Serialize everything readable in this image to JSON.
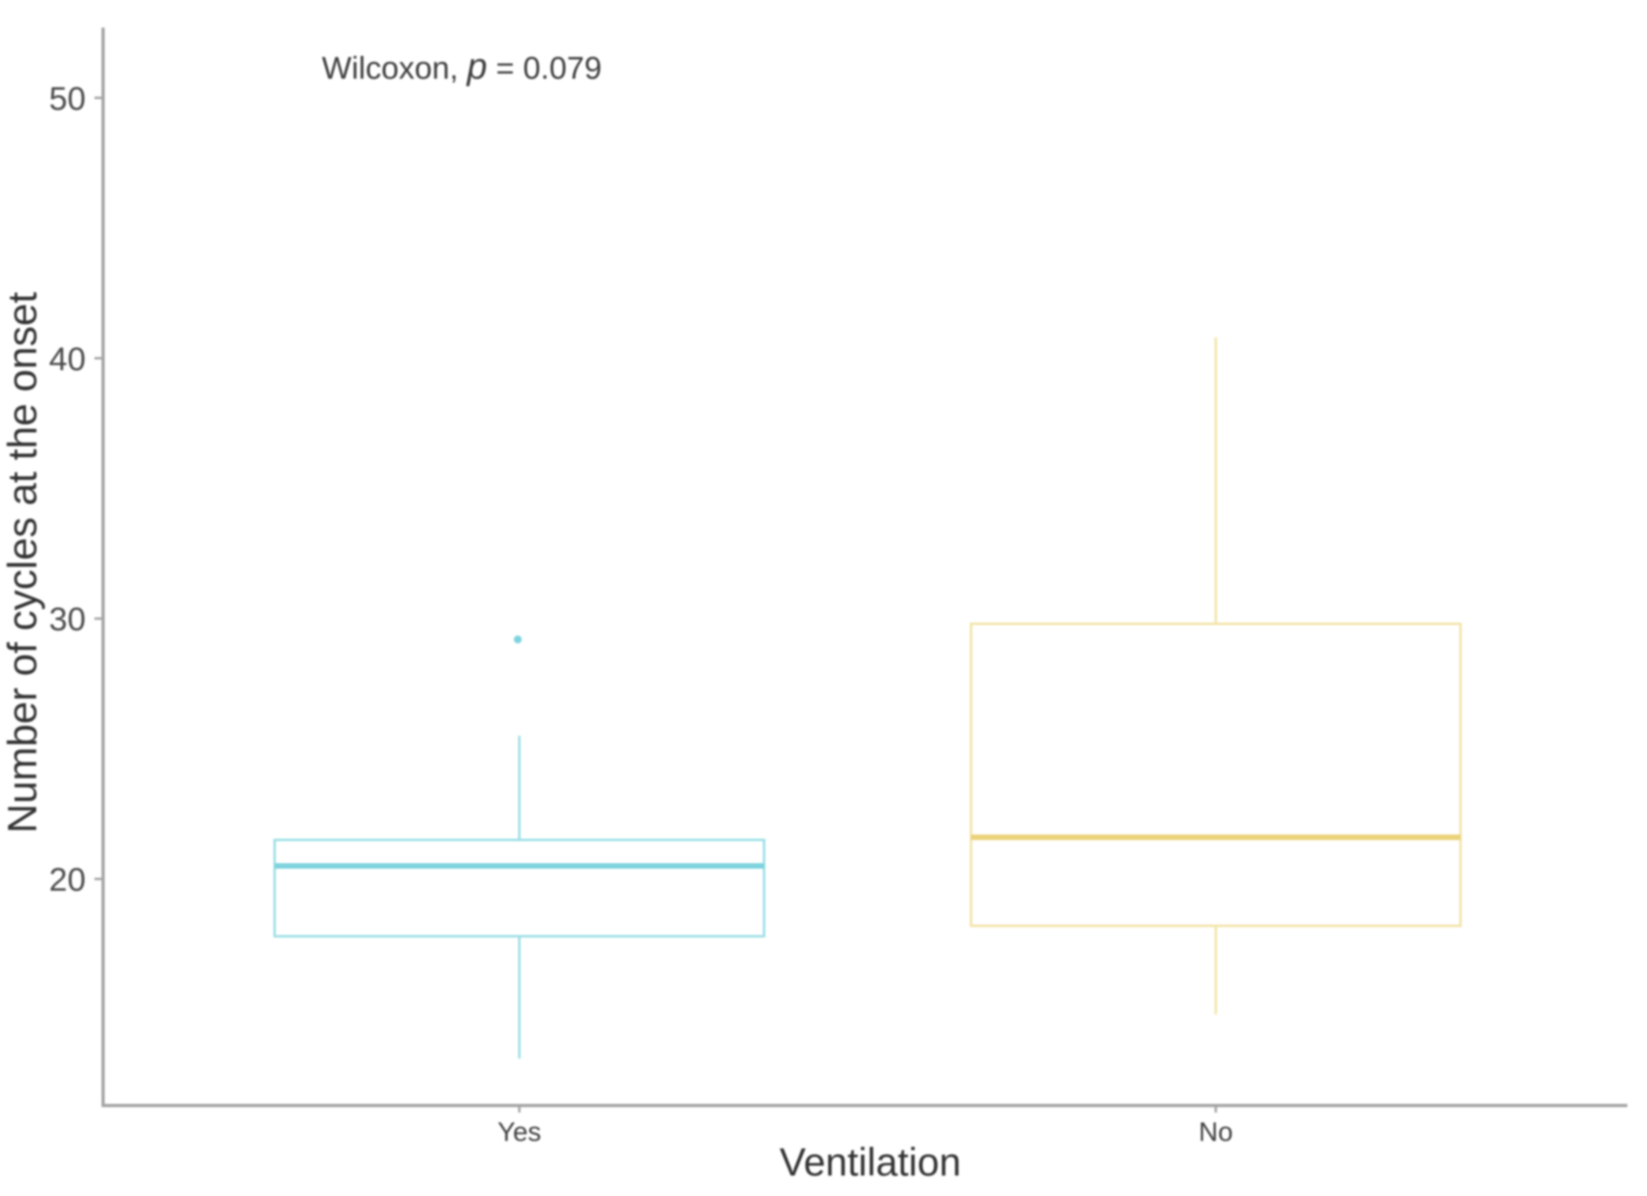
{
  "chart_data": {
    "type": "boxplot",
    "title": "",
    "annotation": {
      "full": "Wilcoxon, p = 0.079",
      "prefix": "Wilcoxon, ",
      "p_symbol": "p",
      "suffix": " = 0.079"
    },
    "xlabel": "Ventilation",
    "ylabel": "Number of cycles at the onset",
    "categories": [
      "Yes",
      "No"
    ],
    "yticks": [
      20,
      30,
      40,
      50
    ],
    "ylim": [
      11.3,
      52.7
    ],
    "grid": false,
    "legend": "none",
    "background": "#ffffff",
    "series": [
      {
        "name": "Yes",
        "box_color": "#9ADEE6",
        "median_color": "#7DD3DD",
        "whisker_min": 13.1,
        "q1": 17.8,
        "median": 20.5,
        "q3": 21.5,
        "whisker_max": 25.5,
        "outliers": [
          29.2
        ]
      },
      {
        "name": "No",
        "box_color": "#F3E3A6",
        "median_color": "#EBD178",
        "whisker_min": 14.8,
        "q1": 18.2,
        "median": 21.6,
        "q3": 29.8,
        "whisker_max": 40.8,
        "outliers": []
      }
    ],
    "colors": {
      "axis_line": "#A3A3A3",
      "tick_text": "#4A4A4A",
      "label_text": "#333333",
      "annotation_text": "#3D3D3D"
    }
  }
}
